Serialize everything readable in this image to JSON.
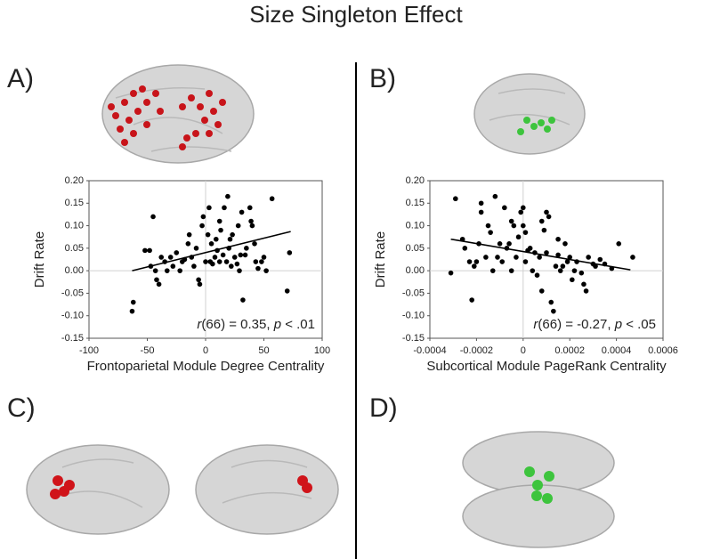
{
  "title": "Size Singleton Effect",
  "panel_labels": [
    "A)",
    "B)",
    "C)",
    "D)"
  ],
  "chart_data": [
    {
      "type": "scatter",
      "color": "#000000",
      "zero_lines": true,
      "xlabel": "Frontoparietal Module Degree Centrality",
      "ylabel": "Drift Rate",
      "annotation": [
        "r",
        "(66) = 0.35, ",
        "p",
        " < .01"
      ],
      "xlim": [
        -100,
        100
      ],
      "xticks": [
        -100,
        -50,
        0,
        50,
        100
      ],
      "ylim": [
        -0.15,
        0.2
      ],
      "yticks": [
        {
          "value": -0.15,
          "label": "-0.15"
        },
        {
          "value": -0.1,
          "label": "-0.10"
        },
        {
          "value": -0.05,
          "label": "-0.05"
        },
        {
          "value": 0,
          "label": "0.00"
        },
        {
          "value": 0.05,
          "label": "0.05"
        },
        {
          "value": 0.1,
          "label": "0.10"
        },
        {
          "value": 0.15,
          "label": "0.15"
        },
        {
          "value": 0.2,
          "label": "0.20"
        }
      ],
      "x": [
        -63,
        -62,
        -45,
        -48,
        -47,
        -43,
        -42,
        -40,
        -38,
        -35,
        -33,
        -30,
        -28,
        -25,
        -22,
        -20,
        -18,
        -15,
        -14,
        -12,
        -10,
        -8,
        -6,
        -5,
        -3,
        -2,
        0,
        2,
        3,
        4,
        5,
        6,
        8,
        9,
        10,
        12,
        12,
        13,
        15,
        16,
        18,
        19,
        20,
        21,
        22,
        25,
        27,
        29,
        30,
        31,
        32,
        34,
        35,
        38,
        39,
        40,
        42,
        43,
        45,
        48,
        50,
        52,
        57,
        70,
        72,
        28,
        -52,
        23
      ],
      "values": [
        -0.09,
        -0.07,
        0.12,
        0.045,
        0.01,
        0.0,
        -0.02,
        -0.03,
        0.03,
        0.02,
        0.0,
        0.03,
        0.01,
        0.04,
        0.0,
        0.02,
        0.025,
        0.06,
        0.08,
        0.03,
        0.01,
        0.05,
        -0.02,
        -0.03,
        0.1,
        0.12,
        0.02,
        0.08,
        0.14,
        0.02,
        0.06,
        0.015,
        0.03,
        0.07,
        0.045,
        0.02,
        0.11,
        0.09,
        0.035,
        0.14,
        0.02,
        0.165,
        0.05,
        0.07,
        0.01,
        0.03,
        0.015,
        0.0,
        0.035,
        0.13,
        -0.065,
        0.035,
        0.05,
        0.14,
        0.11,
        0.1,
        0.06,
        0.02,
        0.005,
        0.02,
        0.03,
        0.0,
        0.16,
        -0.045,
        0.04,
        0.1,
        0.045,
        0.08
      ],
      "trendline": {
        "x": [
          -63,
          73
        ],
        "y": [
          0.0,
          0.087
        ]
      }
    },
    {
      "type": "scatter",
      "color": "#000000",
      "zero_lines": true,
      "xlabel": "Subcortical Module PageRank Centrality",
      "ylabel": "Drift Rate",
      "annotation": [
        "r",
        "(66) = -0.27, ",
        "p",
        " < .05"
      ],
      "xlim": [
        -0.0004,
        0.0006
      ],
      "xticks": [
        -0.0004,
        -0.0002,
        0,
        0.0002,
        0.0004,
        0.0006
      ],
      "ylim": [
        -0.15,
        0.2
      ],
      "yticks": [
        {
          "value": -0.15,
          "label": "-0.15"
        },
        {
          "value": -0.1,
          "label": "-0.10"
        },
        {
          "value": -0.05,
          "label": "-0.05"
        },
        {
          "value": 0,
          "label": "0.00"
        },
        {
          "value": 0.05,
          "label": "0.05"
        },
        {
          "value": 0.1,
          "label": "0.10"
        },
        {
          "value": 0.15,
          "label": "0.15"
        },
        {
          "value": 0.2,
          "label": "0.20"
        }
      ],
      "x": [
        -0.00031,
        -0.00029,
        -0.00026,
        -0.00025,
        -0.00023,
        -0.00022,
        -0.00021,
        -0.0002,
        -0.00019,
        -0.00018,
        -0.00018,
        -0.00016,
        -0.00015,
        -0.00014,
        -0.00013,
        -0.00012,
        -0.00011,
        -0.0001,
        -9e-05,
        -8e-05,
        -7e-05,
        -6e-05,
        -5e-05,
        -4e-05,
        -3e-05,
        -2e-05,
        -1e-05,
        0,
        0,
        1e-05,
        1e-05,
        2e-05,
        3e-05,
        4e-05,
        5e-05,
        6e-05,
        7e-05,
        8e-05,
        9e-05,
        0.0001,
        0.0001,
        0.00011,
        0.00012,
        0.00013,
        0.00014,
        0.00015,
        0.00015,
        0.00016,
        0.00017,
        0.00018,
        0.00019,
        0.0002,
        0.00021,
        0.00022,
        0.00023,
        0.00025,
        0.00026,
        0.00027,
        0.00028,
        0.0003,
        0.00031,
        0.00033,
        0.00035,
        0.00038,
        0.00041,
        0.00047,
        8e-05,
        -5e-05
      ],
      "values": [
        -0.005,
        0.16,
        0.07,
        0.05,
        0.02,
        -0.065,
        0.01,
        0.02,
        0.06,
        0.15,
        0.13,
        0.03,
        0.1,
        0.085,
        0.0,
        0.165,
        0.03,
        0.06,
        0.02,
        0.14,
        0.05,
        0.06,
        0.0,
        0.1,
        0.03,
        0.075,
        0.13,
        0.14,
        0.1,
        0.085,
        0.02,
        0.045,
        0.05,
        0.0,
        0.04,
        -0.01,
        0.03,
        0.11,
        0.09,
        0.13,
        0.04,
        0.12,
        -0.07,
        -0.09,
        0.01,
        0.07,
        0.035,
        0.0,
        0.01,
        0.06,
        0.02,
        0.03,
        -0.02,
        0.0,
        0.02,
        -0.005,
        -0.03,
        -0.045,
        0.03,
        0.015,
        0.01,
        0.025,
        0.015,
        0.005,
        0.06,
        0.03,
        -0.045,
        0.11
      ],
      "trendline": {
        "x": [
          -0.00031,
          0.00046
        ],
        "y": [
          0.07,
          0.002
        ]
      }
    }
  ]
}
